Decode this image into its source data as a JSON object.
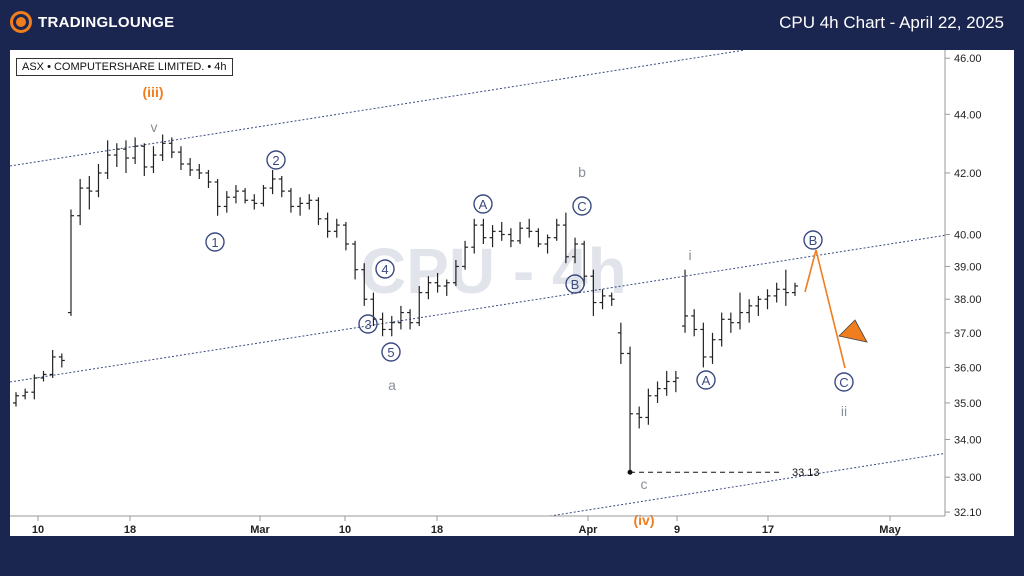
{
  "header": {
    "logo_text": "TRADINGLOUNGE",
    "title": "CPU 4h Chart - April 22, 2025"
  },
  "symbol_label": "ASX • COMPUTERSHARE LIMITED. • 4h",
  "watermark": "CPU - 4h",
  "colors": {
    "background": "#1b2650",
    "accent": "#f07d1e",
    "wave_blue": "#3b4b80",
    "wave_grey": "#8a8f99",
    "candle": "#222222"
  },
  "chart_data": {
    "type": "bar",
    "ylim": [
      32.0,
      46.3
    ],
    "y_scale": "log",
    "y_ticks": [
      46.0,
      44.0,
      42.0,
      40.0,
      39.0,
      38.0,
      37.0,
      36.0,
      35.0,
      34.0,
      33.0,
      32.1
    ],
    "x_ticks": [
      "10",
      "18",
      "Mar",
      "10",
      "18",
      "Apr",
      "9",
      "17",
      "May"
    ],
    "bars_ohlc": [
      [
        35.0,
        35.3,
        34.9,
        35.2
      ],
      [
        35.2,
        35.4,
        35.1,
        35.3
      ],
      [
        35.3,
        35.8,
        35.1,
        35.7
      ],
      [
        35.7,
        35.9,
        35.6,
        35.8
      ],
      [
        35.8,
        36.5,
        35.7,
        36.3
      ],
      [
        36.3,
        36.4,
        36.0,
        36.2
      ],
      [
        37.6,
        40.8,
        37.5,
        40.6
      ],
      [
        40.6,
        41.8,
        40.3,
        41.5
      ],
      [
        41.5,
        41.9,
        40.8,
        41.4
      ],
      [
        41.4,
        42.3,
        41.2,
        42.0
      ],
      [
        42.0,
        43.1,
        41.8,
        42.6
      ],
      [
        42.6,
        43.0,
        42.2,
        42.8
      ],
      [
        42.8,
        43.1,
        42.0,
        42.5
      ],
      [
        42.5,
        43.2,
        42.3,
        42.9
      ],
      [
        42.9,
        43.0,
        41.9,
        42.2
      ],
      [
        42.2,
        42.9,
        42.0,
        42.6
      ],
      [
        42.6,
        43.3,
        42.4,
        43.0
      ],
      [
        43.0,
        43.2,
        42.5,
        42.7
      ],
      [
        42.7,
        42.9,
        42.1,
        42.3
      ],
      [
        42.3,
        42.5,
        41.9,
        42.1
      ],
      [
        42.1,
        42.3,
        41.8,
        42.0
      ],
      [
        42.0,
        42.1,
        41.5,
        41.7
      ],
      [
        41.7,
        41.8,
        40.6,
        40.9
      ],
      [
        40.9,
        41.4,
        40.7,
        41.2
      ],
      [
        41.2,
        41.6,
        41.0,
        41.4
      ],
      [
        41.4,
        41.5,
        41.0,
        41.1
      ],
      [
        41.1,
        41.3,
        40.8,
        41.0
      ],
      [
        41.0,
        41.6,
        40.9,
        41.5
      ],
      [
        41.5,
        42.1,
        41.3,
        41.8
      ],
      [
        41.8,
        41.9,
        41.2,
        41.4
      ],
      [
        41.4,
        41.5,
        40.7,
        40.9
      ],
      [
        40.9,
        41.2,
        40.6,
        41.0
      ],
      [
        41.0,
        41.3,
        40.8,
        41.1
      ],
      [
        41.1,
        41.2,
        40.3,
        40.5
      ],
      [
        40.5,
        40.7,
        39.9,
        40.1
      ],
      [
        40.1,
        40.5,
        39.9,
        40.3
      ],
      [
        40.3,
        40.4,
        39.5,
        39.7
      ],
      [
        39.7,
        39.8,
        38.6,
        38.9
      ],
      [
        38.9,
        39.1,
        37.8,
        38.0
      ],
      [
        38.0,
        38.2,
        37.2,
        37.4
      ],
      [
        37.4,
        37.6,
        36.9,
        37.1
      ],
      [
        37.1,
        37.5,
        36.9,
        37.3
      ],
      [
        37.3,
        37.8,
        37.1,
        37.6
      ],
      [
        37.6,
        37.7,
        37.1,
        37.3
      ],
      [
        37.3,
        38.4,
        37.2,
        38.2
      ],
      [
        38.2,
        38.7,
        38.0,
        38.5
      ],
      [
        38.5,
        38.8,
        38.2,
        38.4
      ],
      [
        38.4,
        38.6,
        38.1,
        38.5
      ],
      [
        38.5,
        39.2,
        38.4,
        39.0
      ],
      [
        39.0,
        39.8,
        38.9,
        39.6
      ],
      [
        39.6,
        40.5,
        39.4,
        40.3
      ],
      [
        40.3,
        40.5,
        39.7,
        39.9
      ],
      [
        39.9,
        40.3,
        39.6,
        40.1
      ],
      [
        40.1,
        40.4,
        39.8,
        40.0
      ],
      [
        40.0,
        40.2,
        39.6,
        39.8
      ],
      [
        39.8,
        40.4,
        39.7,
        40.2
      ],
      [
        40.2,
        40.5,
        39.9,
        40.1
      ],
      [
        40.1,
        40.2,
        39.6,
        39.7
      ],
      [
        39.7,
        40.0,
        39.4,
        39.9
      ],
      [
        39.9,
        40.5,
        39.8,
        40.3
      ],
      [
        40.3,
        40.7,
        39.1,
        39.3
      ],
      [
        39.3,
        39.9,
        39.1,
        39.7
      ],
      [
        39.7,
        39.8,
        38.4,
        38.7
      ],
      [
        38.7,
        38.9,
        37.5,
        37.9
      ],
      [
        37.9,
        38.3,
        37.7,
        38.1
      ],
      [
        38.1,
        38.2,
        37.8,
        38.0
      ],
      [
        37.0,
        37.3,
        36.1,
        36.4
      ],
      [
        36.4,
        36.6,
        33.1,
        34.7
      ],
      [
        34.7,
        34.9,
        34.3,
        34.6
      ],
      [
        34.6,
        35.4,
        34.4,
        35.2
      ],
      [
        35.2,
        35.6,
        35.0,
        35.4
      ],
      [
        35.4,
        35.9,
        35.2,
        35.6
      ],
      [
        35.6,
        35.9,
        35.3,
        35.7
      ],
      [
        37.2,
        38.9,
        37.0,
        37.5
      ],
      [
        37.5,
        37.7,
        36.9,
        37.1
      ],
      [
        37.1,
        37.3,
        36.0,
        36.3
      ],
      [
        36.3,
        37.0,
        36.1,
        36.8
      ],
      [
        36.8,
        37.6,
        36.6,
        37.4
      ],
      [
        37.4,
        37.6,
        37.0,
        37.3
      ],
      [
        37.3,
        38.2,
        37.1,
        37.6
      ],
      [
        37.6,
        38.0,
        37.3,
        37.8
      ],
      [
        37.8,
        38.1,
        37.5,
        38.0
      ],
      [
        38.0,
        38.3,
        37.7,
        38.1
      ],
      [
        38.1,
        38.5,
        37.9,
        38.3
      ],
      [
        38.3,
        38.9,
        37.8,
        38.2
      ],
      [
        38.2,
        38.5,
        38.1,
        38.4
      ]
    ],
    "price_label": "33.13",
    "wave_labels": [
      {
        "text": "(iii)",
        "color": "accent"
      },
      {
        "text": "v",
        "color": "grey"
      },
      {
        "text": "1",
        "color": "blue"
      },
      {
        "text": "2",
        "color": "blue"
      },
      {
        "text": "3",
        "color": "blue"
      },
      {
        "text": "4",
        "color": "blue"
      },
      {
        "text": "5",
        "color": "blue"
      },
      {
        "text": "a",
        "color": "grey"
      },
      {
        "text": "A",
        "color": "blue"
      },
      {
        "text": "b",
        "color": "grey"
      },
      {
        "text": "C",
        "color": "blue"
      },
      {
        "text": "B",
        "color": "blue"
      },
      {
        "text": "c",
        "color": "grey"
      },
      {
        "text": "(iv)",
        "color": "accent"
      },
      {
        "text": "i",
        "color": "grey"
      },
      {
        "text": "A",
        "color": "blue"
      },
      {
        "text": "B",
        "color": "blue"
      },
      {
        "text": "C",
        "color": "blue"
      },
      {
        "text": "ii",
        "color": "grey"
      }
    ]
  }
}
